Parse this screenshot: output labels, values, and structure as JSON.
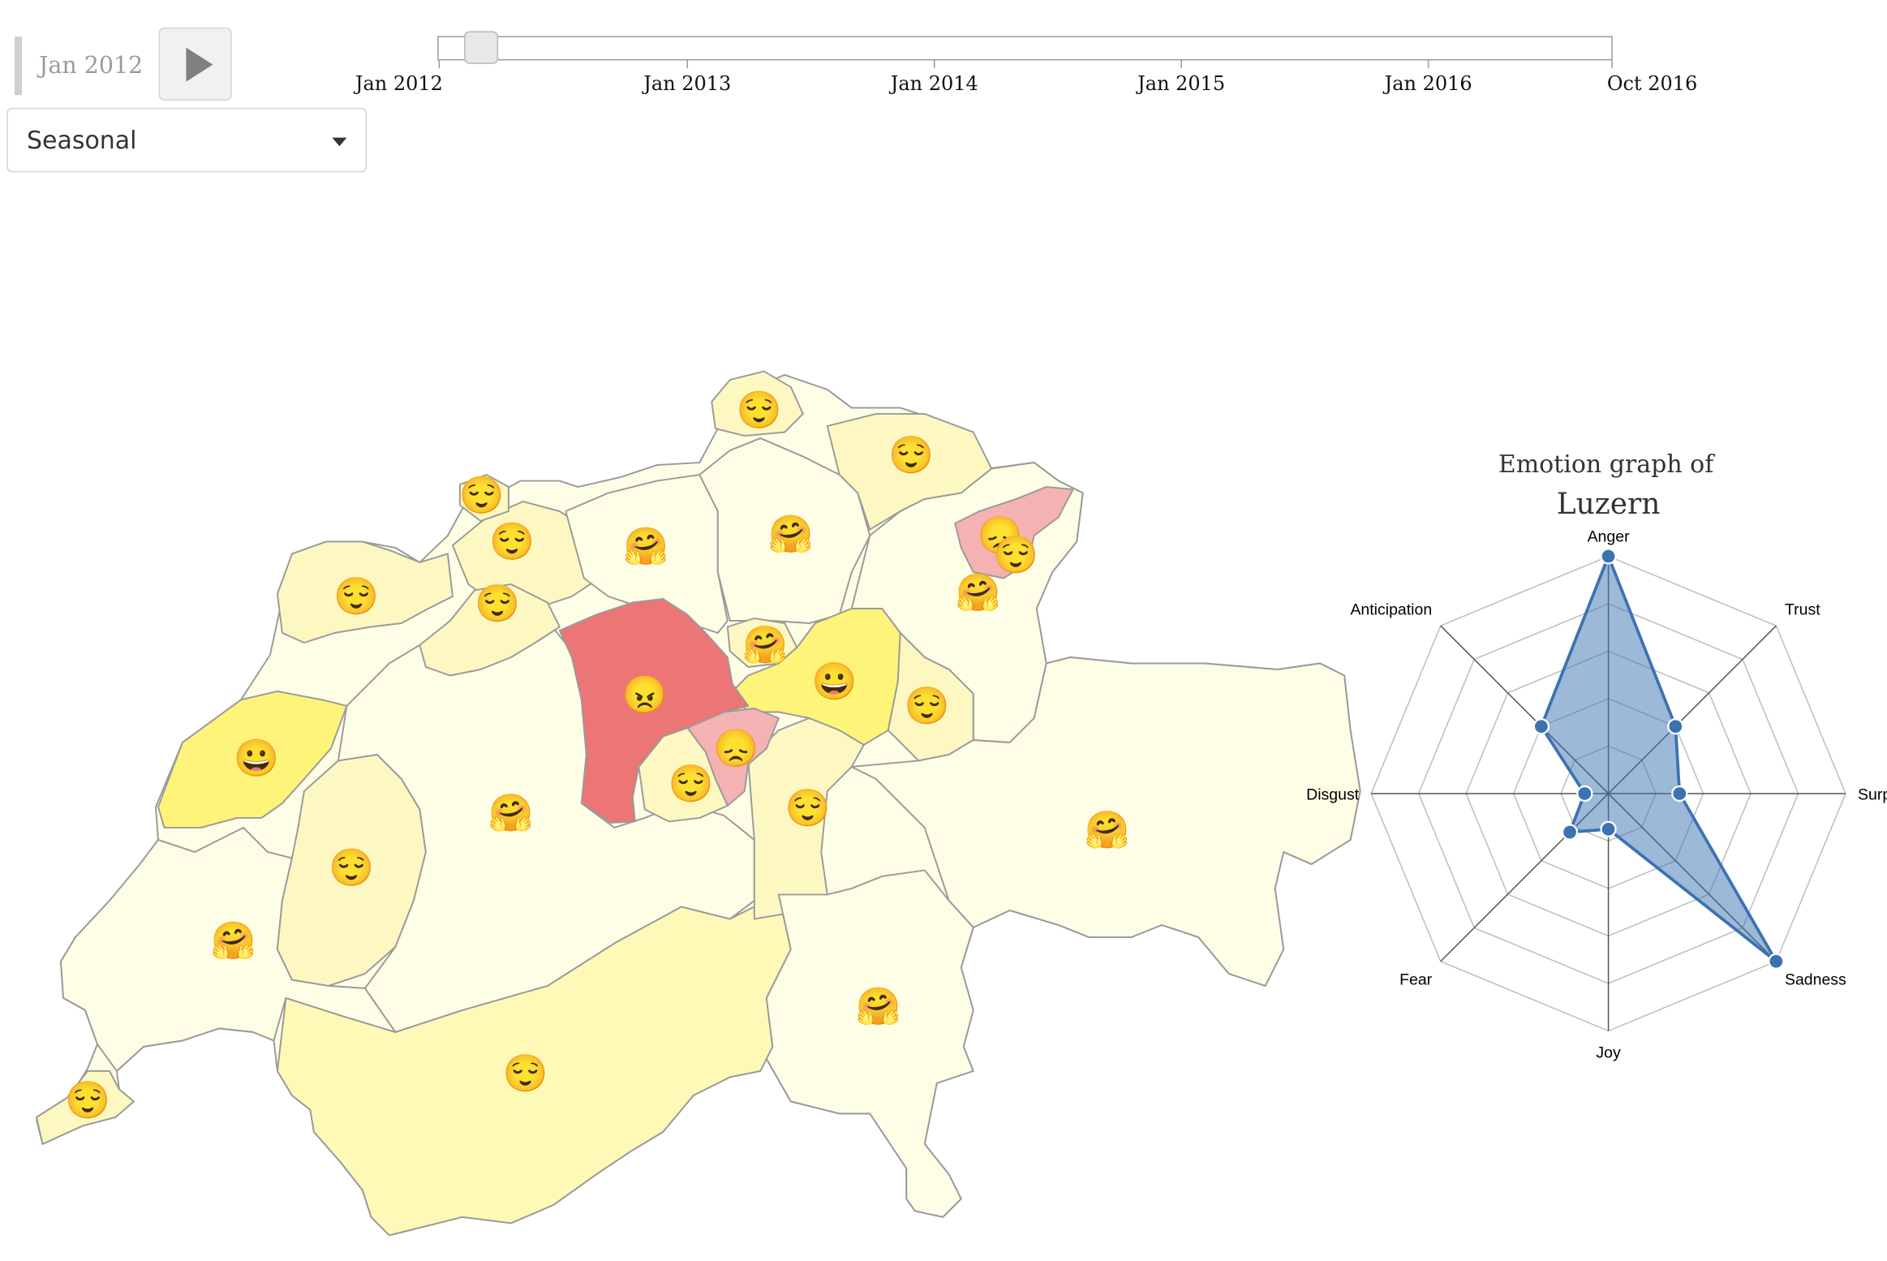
{
  "controls": {
    "date_label": "Jan 2012",
    "view_select": {
      "value": "Seasonal"
    },
    "timeline": {
      "start": "Jan 2012",
      "end": "Oct 2016",
      "current": "Jan 2012",
      "ticks": [
        "Jan 2012",
        "Jan 2013",
        "Jan 2014",
        "Jan 2015",
        "Jan 2016",
        "Oct 2016"
      ]
    }
  },
  "map": {
    "colors": {
      "very_low": "#fefde6",
      "low": "#fdf8c2",
      "medium": "#fff47a",
      "sad": "#f4b2b3",
      "angry": "#ec7576"
    },
    "emoji_legend": {
      "relieved": "😌",
      "hugging": "🤗",
      "grinning": "😀",
      "angry": "😠",
      "disappointed": "😞"
    },
    "selected_canton": "Luzern"
  },
  "radar": {
    "title": "Emotion graph of",
    "canton": "Luzern",
    "axes": [
      "Anger",
      "Trust",
      "Surprise",
      "Sadness",
      "Joy",
      "Fear",
      "Disgust",
      "Anticipation"
    ],
    "values": [
      1.0,
      0.4,
      0.3,
      1.0,
      0.15,
      0.23,
      0.1,
      0.4
    ],
    "levels": 5,
    "color": "#3b73b1"
  }
}
